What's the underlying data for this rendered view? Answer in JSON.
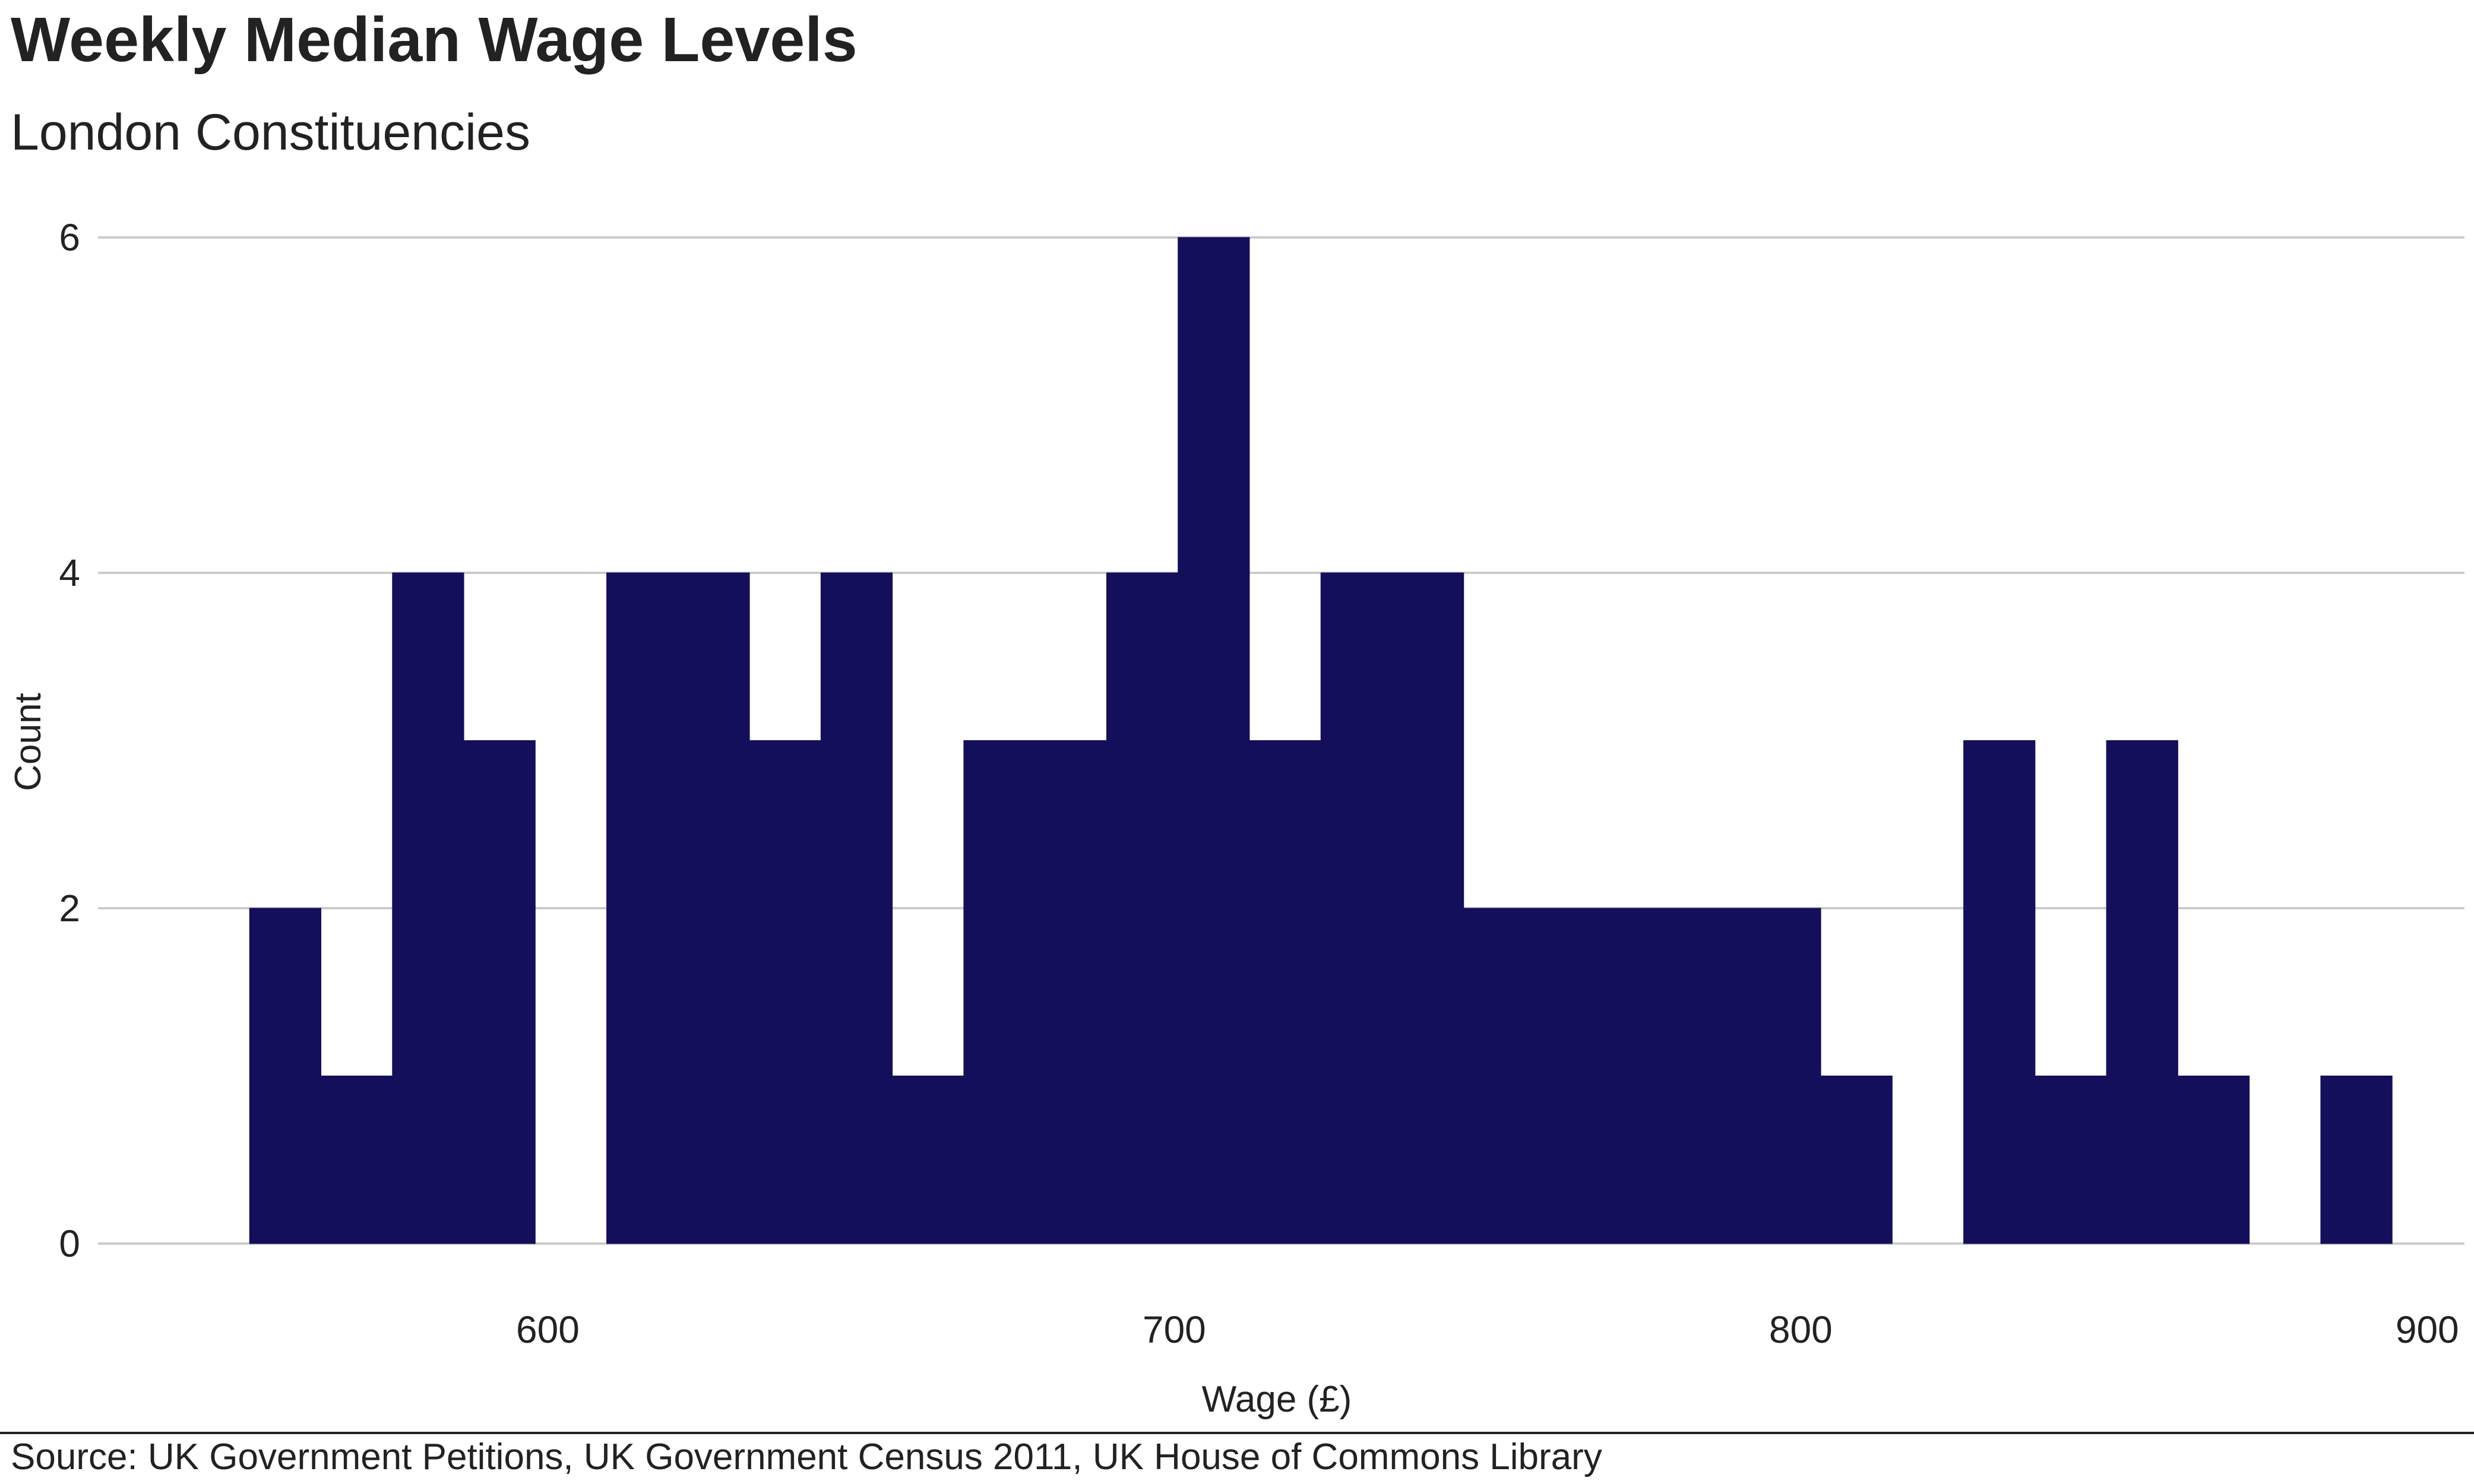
{
  "title": "Weekly Median Wage Levels",
  "subtitle": "London Constituencies",
  "source": "Source: UK Government Petitions, UK Government Census 2011, UK House of Commons Library",
  "colors": {
    "bar": "#140f5a",
    "grid": "#cbcbcb",
    "text": "#222222"
  },
  "chart_data": {
    "type": "bar",
    "title": "Weekly Median Wage Levels",
    "subtitle": "London Constituencies",
    "xlabel": "Wage (£)",
    "ylabel": "Count",
    "xlim": [
      541,
      905
    ],
    "ylim": [
      0,
      6
    ],
    "x_ticks": [
      600,
      700,
      800,
      900
    ],
    "y_ticks": [
      0,
      2,
      4,
      6
    ],
    "grid": "horizontal",
    "bin_width": 11.4,
    "bins": [
      {
        "x0": 552.4,
        "x1": 563.8,
        "count": 2
      },
      {
        "x0": 563.8,
        "x1": 575.2,
        "count": 1
      },
      {
        "x0": 575.2,
        "x1": 586.6,
        "count": 4
      },
      {
        "x0": 586.6,
        "x1": 598.0,
        "count": 3
      },
      {
        "x0": 598.0,
        "x1": 609.4,
        "count": 0
      },
      {
        "x0": 609.4,
        "x1": 620.8,
        "count": 4
      },
      {
        "x0": 620.8,
        "x1": 632.2,
        "count": 4
      },
      {
        "x0": 632.2,
        "x1": 643.6,
        "count": 3
      },
      {
        "x0": 643.6,
        "x1": 655.0,
        "count": 4
      },
      {
        "x0": 655.0,
        "x1": 666.4,
        "count": 1
      },
      {
        "x0": 666.4,
        "x1": 677.8,
        "count": 3
      },
      {
        "x0": 677.8,
        "x1": 689.2,
        "count": 3
      },
      {
        "x0": 689.2,
        "x1": 700.6,
        "count": 4
      },
      {
        "x0": 700.6,
        "x1": 712.0,
        "count": 6
      },
      {
        "x0": 712.0,
        "x1": 723.4,
        "count": 3
      },
      {
        "x0": 723.4,
        "x1": 734.8,
        "count": 4
      },
      {
        "x0": 734.8,
        "x1": 746.2,
        "count": 4
      },
      {
        "x0": 746.2,
        "x1": 757.6,
        "count": 2
      },
      {
        "x0": 757.6,
        "x1": 769.0,
        "count": 2
      },
      {
        "x0": 769.0,
        "x1": 780.4,
        "count": 2
      },
      {
        "x0": 780.4,
        "x1": 791.8,
        "count": 2
      },
      {
        "x0": 791.8,
        "x1": 803.2,
        "count": 2
      },
      {
        "x0": 803.2,
        "x1": 814.6,
        "count": 1
      },
      {
        "x0": 814.6,
        "x1": 826.0,
        "count": 0
      },
      {
        "x0": 826.0,
        "x1": 837.4,
        "count": 3
      },
      {
        "x0": 837.4,
        "x1": 848.8,
        "count": 1
      },
      {
        "x0": 848.8,
        "x1": 860.2,
        "count": 3
      },
      {
        "x0": 860.2,
        "x1": 871.6,
        "count": 1
      },
      {
        "x0": 871.6,
        "x1": 883.0,
        "count": 0
      },
      {
        "x0": 883.0,
        "x1": 894.4,
        "count": 1
      }
    ]
  }
}
